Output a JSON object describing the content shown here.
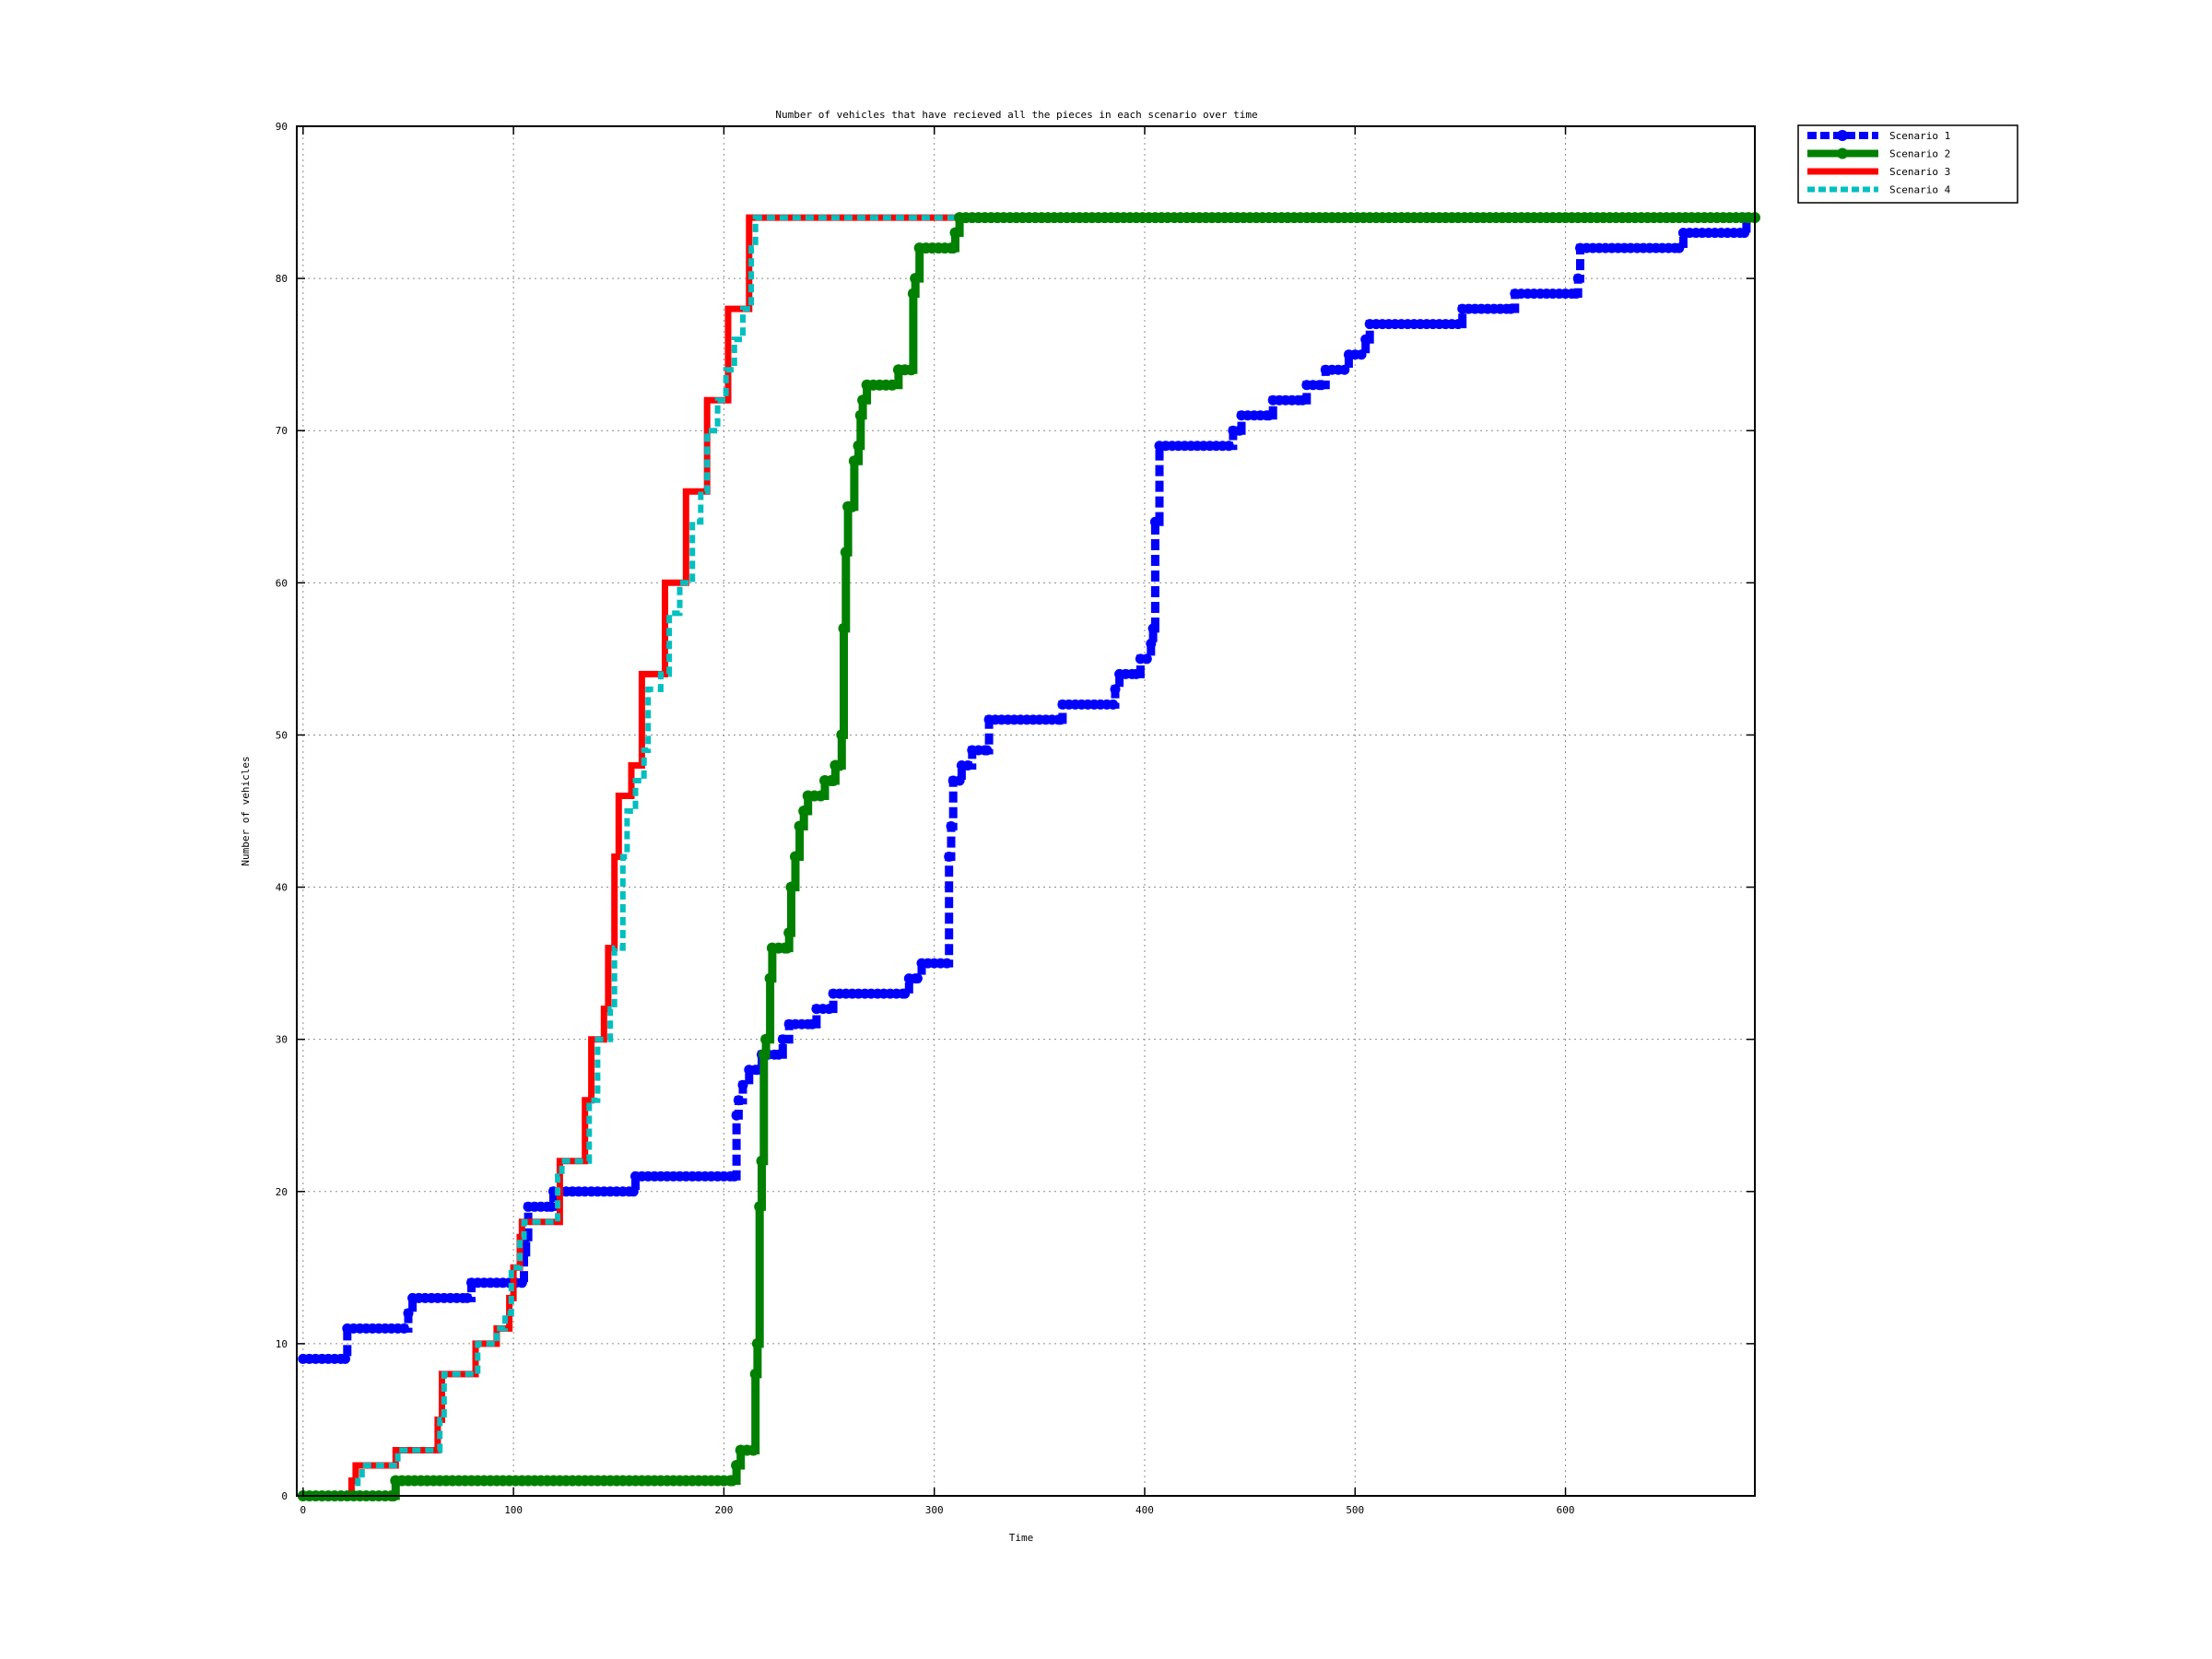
{
  "chart_data": {
    "type": "line",
    "title": "Number of vehicles that have recieved all the pieces in each scenario over time",
    "xlabel": "Time",
    "ylabel": "Number of vehicles",
    "xlim": [
      -3,
      690
    ],
    "ylim": [
      0,
      90
    ],
    "xticks": [
      0,
      100,
      200,
      300,
      400,
      500,
      600
    ],
    "yticks": [
      0,
      10,
      20,
      30,
      40,
      50,
      60,
      70,
      80,
      90
    ],
    "grid": true,
    "legend_position": "outside-top-right",
    "series": [
      {
        "name": "Scenario 1",
        "color": "#0000ff",
        "style": "dashed-markers",
        "points": [
          [
            0,
            9
          ],
          [
            20,
            9
          ],
          [
            21,
            11
          ],
          [
            48,
            11
          ],
          [
            50,
            12
          ],
          [
            52,
            13
          ],
          [
            78,
            13
          ],
          [
            80,
            14
          ],
          [
            104,
            14
          ],
          [
            105,
            16
          ],
          [
            106,
            17
          ],
          [
            107,
            19
          ],
          [
            118,
            19
          ],
          [
            119,
            20
          ],
          [
            157,
            20
          ],
          [
            158,
            21
          ],
          [
            205,
            21
          ],
          [
            206,
            25
          ],
          [
            207,
            26
          ],
          [
            209,
            27
          ],
          [
            212,
            28
          ],
          [
            216,
            28
          ],
          [
            218,
            29
          ],
          [
            226,
            29
          ],
          [
            228,
            30
          ],
          [
            231,
            31
          ],
          [
            242,
            31
          ],
          [
            244,
            32
          ],
          [
            250,
            32
          ],
          [
            252,
            33
          ],
          [
            286,
            33
          ],
          [
            288,
            34
          ],
          [
            292,
            34
          ],
          [
            294,
            35
          ],
          [
            306,
            35
          ],
          [
            307,
            42
          ],
          [
            308,
            44
          ],
          [
            309,
            47
          ],
          [
            313,
            48
          ],
          [
            318,
            49
          ],
          [
            325,
            49
          ],
          [
            326,
            51
          ],
          [
            360,
            51
          ],
          [
            361,
            52
          ],
          [
            385,
            52
          ],
          [
            386,
            53
          ],
          [
            388,
            54
          ],
          [
            396,
            54
          ],
          [
            398,
            55
          ],
          [
            401,
            55
          ],
          [
            403,
            56
          ],
          [
            404,
            57
          ],
          [
            405,
            64
          ],
          [
            407,
            69
          ],
          [
            440,
            69
          ],
          [
            442,
            70
          ],
          [
            446,
            71
          ],
          [
            459,
            71
          ],
          [
            461,
            72
          ],
          [
            475,
            72
          ],
          [
            477,
            73
          ],
          [
            484,
            73
          ],
          [
            486,
            74
          ],
          [
            495,
            74
          ],
          [
            497,
            75
          ],
          [
            503,
            75
          ],
          [
            505,
            76
          ],
          [
            507,
            77
          ],
          [
            549,
            77
          ],
          [
            551,
            78
          ],
          [
            574,
            78
          ],
          [
            576,
            79
          ],
          [
            605,
            79
          ],
          [
            606,
            80
          ],
          [
            607,
            82
          ],
          [
            654,
            82
          ],
          [
            656,
            83
          ],
          [
            685,
            83
          ],
          [
            686,
            84
          ]
        ]
      },
      {
        "name": "Scenario 2",
        "color": "#008000",
        "style": "solid-markers",
        "points": [
          [
            0,
            0
          ],
          [
            43,
            0
          ],
          [
            44,
            1
          ],
          [
            204,
            1
          ],
          [
            206,
            2
          ],
          [
            208,
            3
          ],
          [
            214,
            3
          ],
          [
            215,
            8
          ],
          [
            216,
            10
          ],
          [
            217,
            19
          ],
          [
            218,
            22
          ],
          [
            219,
            29
          ],
          [
            220,
            30
          ],
          [
            222,
            34
          ],
          [
            223,
            36
          ],
          [
            230,
            36
          ],
          [
            231,
            37
          ],
          [
            232,
            40
          ],
          [
            234,
            42
          ],
          [
            236,
            44
          ],
          [
            238,
            45
          ],
          [
            240,
            46
          ],
          [
            246,
            46
          ],
          [
            248,
            47
          ],
          [
            252,
            47
          ],
          [
            253,
            48
          ],
          [
            255,
            48
          ],
          [
            256,
            50
          ],
          [
            257,
            57
          ],
          [
            258,
            62
          ],
          [
            259,
            65
          ],
          [
            261,
            65
          ],
          [
            262,
            68
          ],
          [
            264,
            69
          ],
          [
            265,
            71
          ],
          [
            266,
            72
          ],
          [
            268,
            73
          ],
          [
            280,
            73
          ],
          [
            283,
            74
          ],
          [
            289,
            74
          ],
          [
            290,
            79
          ],
          [
            291,
            80
          ],
          [
            293,
            82
          ],
          [
            309,
            82
          ],
          [
            310,
            83
          ],
          [
            312,
            84
          ],
          [
            690,
            84
          ]
        ]
      },
      {
        "name": "Scenario 3",
        "color": "#ff0000",
        "style": "solid",
        "points": [
          [
            0,
            0
          ],
          [
            20,
            0
          ],
          [
            23,
            1
          ],
          [
            25,
            2
          ],
          [
            42,
            2
          ],
          [
            44,
            3
          ],
          [
            62,
            3
          ],
          [
            64,
            5
          ],
          [
            66,
            8
          ],
          [
            80,
            8
          ],
          [
            82,
            10
          ],
          [
            90,
            10
          ],
          [
            92,
            11
          ],
          [
            96,
            11
          ],
          [
            98,
            13
          ],
          [
            100,
            15
          ],
          [
            103,
            17
          ],
          [
            104,
            18
          ],
          [
            119,
            18
          ],
          [
            122,
            22
          ],
          [
            132,
            22
          ],
          [
            134,
            26
          ],
          [
            137,
            30
          ],
          [
            141,
            30
          ],
          [
            143,
            32
          ],
          [
            145,
            36
          ],
          [
            148,
            42
          ],
          [
            150,
            46
          ],
          [
            155,
            46
          ],
          [
            156,
            48
          ],
          [
            160,
            48
          ],
          [
            161,
            54
          ],
          [
            170,
            54
          ],
          [
            172,
            60
          ],
          [
            180,
            60
          ],
          [
            182,
            66
          ],
          [
            190,
            66
          ],
          [
            192,
            72
          ],
          [
            200,
            72
          ],
          [
            202,
            78
          ],
          [
            210,
            78
          ],
          [
            212,
            84
          ],
          [
            690,
            84
          ]
        ]
      },
      {
        "name": "Scenario 4",
        "color": "#00bfbf",
        "style": "dashed",
        "points": [
          [
            0,
            0
          ],
          [
            24,
            0
          ],
          [
            26,
            1
          ],
          [
            28,
            2
          ],
          [
            43,
            2
          ],
          [
            45,
            3
          ],
          [
            63,
            3
          ],
          [
            65,
            5
          ],
          [
            67,
            8
          ],
          [
            80,
            8
          ],
          [
            83,
            10
          ],
          [
            92,
            11
          ],
          [
            96,
            12
          ],
          [
            99,
            15
          ],
          [
            103,
            17
          ],
          [
            105,
            18
          ],
          [
            118,
            18
          ],
          [
            121,
            21
          ],
          [
            123,
            22
          ],
          [
            133,
            22
          ],
          [
            136,
            26
          ],
          [
            140,
            30
          ],
          [
            146,
            32
          ],
          [
            148,
            36
          ],
          [
            152,
            42
          ],
          [
            154,
            45
          ],
          [
            158,
            47
          ],
          [
            162,
            49
          ],
          [
            164,
            53
          ],
          [
            170,
            54
          ],
          [
            174,
            58
          ],
          [
            179,
            60
          ],
          [
            185,
            64
          ],
          [
            189,
            66
          ],
          [
            192,
            70
          ],
          [
            197,
            72
          ],
          [
            201,
            74
          ],
          [
            205,
            76
          ],
          [
            209,
            78
          ],
          [
            213,
            82
          ],
          [
            215,
            84
          ],
          [
            690,
            84
          ]
        ]
      }
    ]
  }
}
